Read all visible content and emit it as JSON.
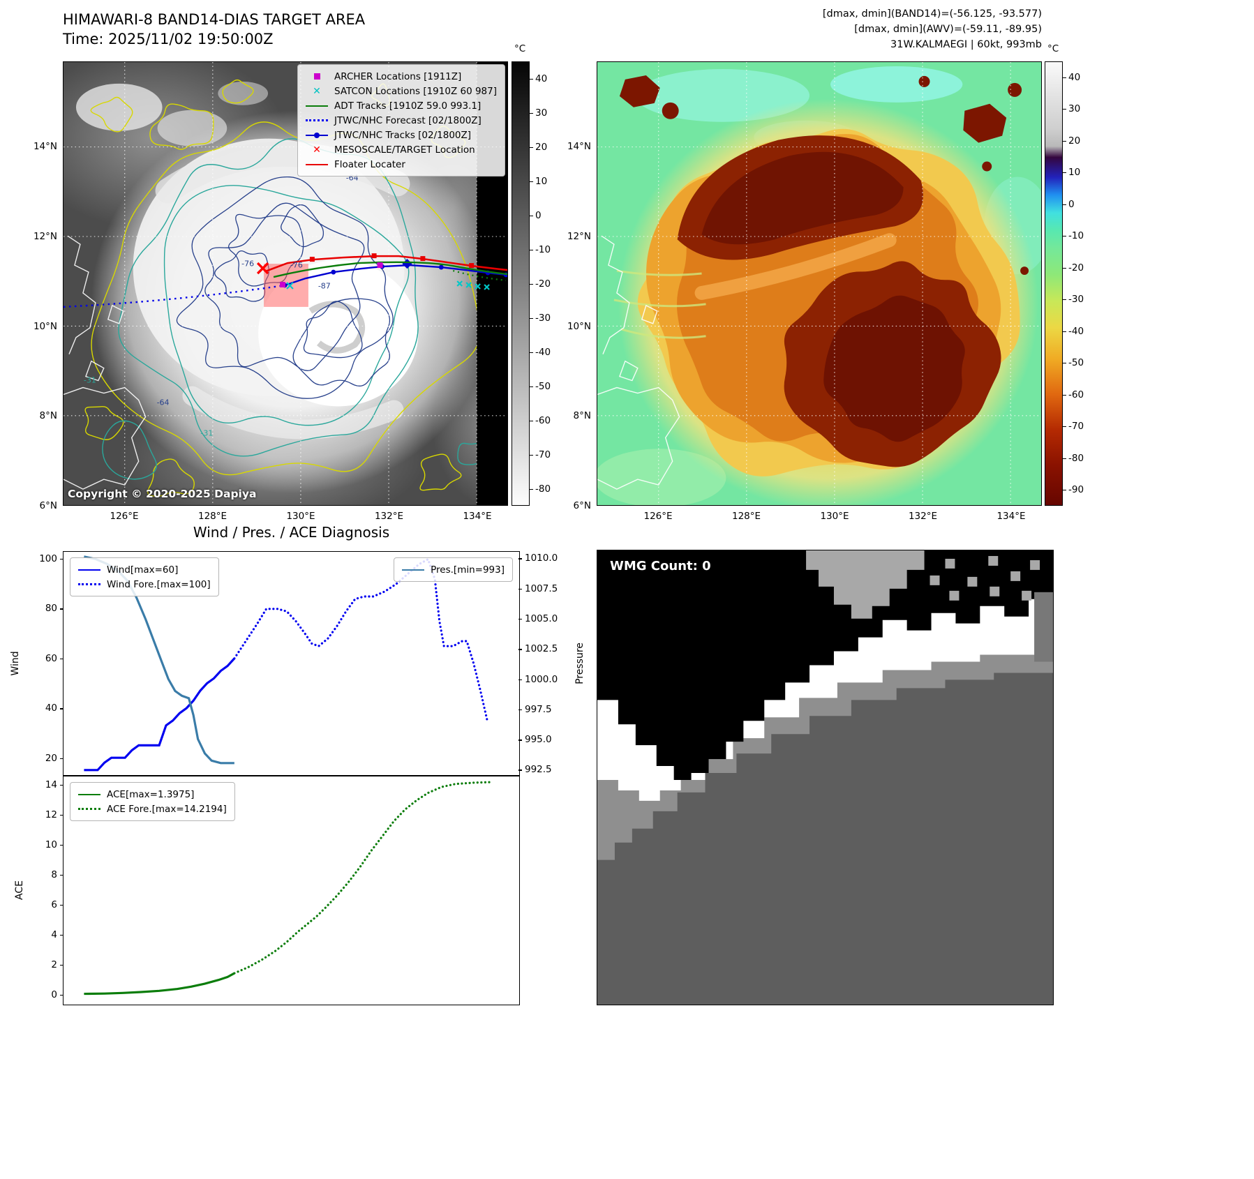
{
  "panel_band14": {
    "title": "HIMAWARI-8 BAND14-DIAS TARGET AREA",
    "time_line": "Time: 2025/11/02 19:50:00Z",
    "copyright": "Copyright © 2020-2025 Dapiya",
    "x_ticks": [
      "126°E",
      "128°E",
      "130°E",
      "132°E",
      "134°E"
    ],
    "y_ticks": [
      "14°N",
      "12°N",
      "10°N",
      "8°N",
      "6°N"
    ],
    "colorbar": {
      "unit": "°C",
      "ticks": [
        "40",
        "30",
        "20",
        "10",
        "0",
        "-10",
        "-20",
        "-30",
        "-40",
        "-50",
        "-60",
        "-70",
        "-80"
      ]
    },
    "legend": [
      {
        "label": "ARCHER Locations [1911Z]",
        "marker": "square",
        "color": "#cc00cc"
      },
      {
        "label": "SATCON Locations [1910Z 60 987]",
        "marker": "xmark",
        "color": "#00c2c2"
      },
      {
        "label": "ADT Tracks [1910Z 59.0 993.1]",
        "marker": "line",
        "color": "#0b7d0b"
      },
      {
        "label": "JTWC/NHC Forecast [02/1800Z]",
        "marker": "dotted",
        "color": "#0000f0"
      },
      {
        "label": "JTWC/NHC Tracks [02/1800Z]",
        "marker": "linedot",
        "color": "#0000d0"
      },
      {
        "label": "MESOSCALE/TARGET Location",
        "marker": "xmark",
        "color": "#ff0000"
      },
      {
        "label": "Floater Locater",
        "marker": "line",
        "color": "#e80000"
      }
    ],
    "contour_labels": [
      {
        "text": "-64",
        "color": "#27408b"
      },
      {
        "text": "-76",
        "color": "#27408b"
      },
      {
        "text": "-76",
        "color": "#27408b"
      },
      {
        "text": "-87",
        "color": "#27408b"
      },
      {
        "text": "-64",
        "color": "#27408b"
      },
      {
        "text": "-31",
        "color": "#2aa79b"
      },
      {
        "text": "-31",
        "color": "#2aa79b"
      }
    ]
  },
  "panel_awv": {
    "header_lines": [
      "[dmax, dmin](BAND14)=(-56.125, -93.577)",
      "[dmax, dmin](AWV)=(-59.11, -89.95)",
      "31W.KALMAEGI | 60kt, 993mb"
    ],
    "x_ticks": [
      "126°E",
      "128°E",
      "130°E",
      "132°E",
      "134°E"
    ],
    "y_ticks": [
      "14°N",
      "12°N",
      "10°N",
      "8°N",
      "6°N"
    ],
    "colorbar": {
      "unit": "°C",
      "ticks": [
        "40",
        "30",
        "20",
        "10",
        "0",
        "-10",
        "-20",
        "-30",
        "-40",
        "-50",
        "-60",
        "-70",
        "-80",
        "-90"
      ]
    }
  },
  "diagnosis": {
    "title": "Wind / Pres. / ACE Diagnosis",
    "wind_ylabel": "Wind",
    "pressure_ylabel": "Pressure",
    "ace_ylabel": "ACE"
  },
  "wmg": {
    "label": "WMG Count: 0"
  },
  "chart_data": [
    {
      "type": "line",
      "panel": "wind-pressure",
      "ylabel": "Wind",
      "y2label": "Pressure",
      "ylim": [
        13,
        103
      ],
      "y2lim": [
        992.0,
        1010.6
      ],
      "yticks": [
        "100",
        "80",
        "60",
        "40",
        "20"
      ],
      "y2ticks": [
        "1010.0",
        "1007.5",
        "1005.0",
        "1002.5",
        "1000.0",
        "997.5",
        "995.0",
        "992.5"
      ],
      "series": [
        {
          "name": "Wind[max=60]",
          "color": "#0000f0",
          "style": "solid",
          "axis": "left",
          "points": [
            [
              0.045,
              15
            ],
            [
              0.075,
              15
            ],
            [
              0.09,
              18
            ],
            [
              0.105,
              20
            ],
            [
              0.135,
              20
            ],
            [
              0.15,
              23
            ],
            [
              0.165,
              25
            ],
            [
              0.195,
              25
            ],
            [
              0.21,
              25
            ],
            [
              0.225,
              33
            ],
            [
              0.24,
              35
            ],
            [
              0.255,
              38
            ],
            [
              0.27,
              40
            ],
            [
              0.285,
              43
            ],
            [
              0.3,
              47
            ],
            [
              0.315,
              50
            ],
            [
              0.33,
              52
            ],
            [
              0.345,
              55
            ],
            [
              0.36,
              57
            ],
            [
              0.375,
              60
            ]
          ]
        },
        {
          "name": "Wind Fore.[max=100]",
          "color": "#0000f0",
          "style": "dotted",
          "axis": "left",
          "points": [
            [
              0.375,
              60
            ],
            [
              0.4,
              67
            ],
            [
              0.425,
              74
            ],
            [
              0.445,
              80
            ],
            [
              0.47,
              80
            ],
            [
              0.49,
              79
            ],
            [
              0.51,
              75
            ],
            [
              0.53,
              70
            ],
            [
              0.545,
              66
            ],
            [
              0.56,
              65
            ],
            [
              0.58,
              68
            ],
            [
              0.6,
              73
            ],
            [
              0.62,
              79
            ],
            [
              0.64,
              84
            ],
            [
              0.66,
              85
            ],
            [
              0.68,
              85
            ],
            [
              0.705,
              87
            ],
            [
              0.73,
              90
            ],
            [
              0.755,
              94
            ],
            [
              0.78,
              98
            ],
            [
              0.8,
              100
            ],
            [
              0.815,
              92
            ],
            [
              0.825,
              75
            ],
            [
              0.835,
              65
            ],
            [
              0.855,
              65
            ],
            [
              0.875,
              67
            ],
            [
              0.885,
              67
            ],
            [
              0.9,
              58
            ],
            [
              0.915,
              47
            ],
            [
              0.93,
              35
            ]
          ]
        },
        {
          "name": "Pres.[min=993]",
          "color": "#3a7ca8",
          "style": "solid",
          "axis": "right",
          "points": [
            [
              0.045,
              1010.2
            ],
            [
              0.07,
              1010.0
            ],
            [
              0.095,
              1009.6
            ],
            [
              0.12,
              1009.0
            ],
            [
              0.14,
              1008.2
            ],
            [
              0.16,
              1006.8
            ],
            [
              0.18,
              1005.0
            ],
            [
              0.2,
              1003.0
            ],
            [
              0.215,
              1001.5
            ],
            [
              0.23,
              1000.0
            ],
            [
              0.245,
              999.0
            ],
            [
              0.26,
              998.6
            ],
            [
              0.275,
              998.4
            ],
            [
              0.285,
              997.0
            ],
            [
              0.295,
              995.0
            ],
            [
              0.31,
              993.8
            ],
            [
              0.325,
              993.2
            ],
            [
              0.345,
              993.0
            ],
            [
              0.375,
              993.0
            ]
          ]
        }
      ]
    },
    {
      "type": "line",
      "panel": "ace",
      "ylabel": "ACE",
      "ylim": [
        -0.7,
        14.6
      ],
      "yticks": [
        "14",
        "12",
        "10",
        "8",
        "6",
        "4",
        "2",
        "0"
      ],
      "series": [
        {
          "name": "ACE[max=1.3975]",
          "color": "#0b7d0b",
          "style": "solid",
          "axis": "left",
          "points": [
            [
              0.045,
              0.02
            ],
            [
              0.09,
              0.04
            ],
            [
              0.13,
              0.08
            ],
            [
              0.17,
              0.14
            ],
            [
              0.21,
              0.22
            ],
            [
              0.25,
              0.35
            ],
            [
              0.28,
              0.5
            ],
            [
              0.31,
              0.7
            ],
            [
              0.34,
              0.95
            ],
            [
              0.36,
              1.15
            ],
            [
              0.375,
              1.4
            ]
          ]
        },
        {
          "name": "ACE Fore.[max=14.2194]",
          "color": "#0b7d0b",
          "style": "dotted",
          "axis": "left",
          "points": [
            [
              0.375,
              1.4
            ],
            [
              0.405,
              1.8
            ],
            [
              0.435,
              2.3
            ],
            [
              0.465,
              2.9
            ],
            [
              0.49,
              3.5
            ],
            [
              0.515,
              4.2
            ],
            [
              0.535,
              4.7
            ],
            [
              0.555,
              5.2
            ],
            [
              0.575,
              5.8
            ],
            [
              0.6,
              6.6
            ],
            [
              0.625,
              7.5
            ],
            [
              0.65,
              8.5
            ],
            [
              0.675,
              9.6
            ],
            [
              0.7,
              10.6
            ],
            [
              0.725,
              11.6
            ],
            [
              0.75,
              12.4
            ],
            [
              0.775,
              13.0
            ],
            [
              0.8,
              13.5
            ],
            [
              0.83,
              13.9
            ],
            [
              0.86,
              14.1
            ],
            [
              0.9,
              14.18
            ],
            [
              0.935,
              14.22
            ]
          ]
        }
      ]
    }
  ]
}
